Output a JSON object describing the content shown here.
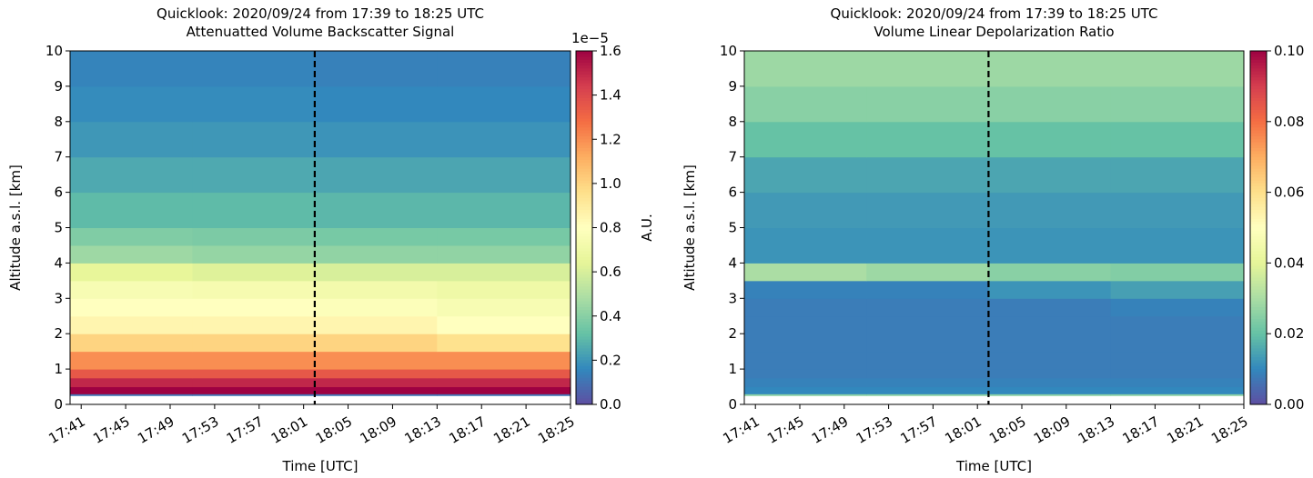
{
  "chart_data": [
    {
      "type": "heatmap",
      "title": "Quicklook: 2020/09/24 from 17:39 to 18:25 UTC",
      "subtitle": "Attenuatted Volume Backscatter Signal",
      "xlabel": "Time [UTC]",
      "ylabel": "Altitude a.s.l. [km]",
      "xlim": [
        1060,
        1105
      ],
      "xticks": [
        {
          "value": 1061,
          "label": "17:41"
        },
        {
          "value": 1065,
          "label": "17:45"
        },
        {
          "value": 1069,
          "label": "17:49"
        },
        {
          "value": 1073,
          "label": "17:53"
        },
        {
          "value": 1077,
          "label": "17:57"
        },
        {
          "value": 1081,
          "label": "18:01"
        },
        {
          "value": 1085,
          "label": "18:05"
        },
        {
          "value": 1089,
          "label": "18:09"
        },
        {
          "value": 1093,
          "label": "18:13"
        },
        {
          "value": 1097,
          "label": "18:17"
        },
        {
          "value": 1101,
          "label": "18:21"
        },
        {
          "value": 1105,
          "label": "18:25"
        }
      ],
      "ylim": [
        0,
        10
      ],
      "yticks": [
        0,
        1,
        2,
        3,
        4,
        5,
        6,
        7,
        8,
        9,
        10
      ],
      "x_edges": [
        1060,
        1071,
        1082,
        1093,
        1105
      ],
      "y_edges": [
        0,
        0.25,
        0.3,
        0.5,
        0.75,
        1,
        1.5,
        2,
        2.5,
        3,
        3.5,
        4,
        4.5,
        5,
        6,
        7,
        8,
        9,
        10
      ],
      "z": [
        [
          null,
          null,
          null,
          null
        ],
        [
          0.1,
          0.1,
          0.1,
          0.1
        ],
        [
          1.6,
          1.6,
          1.6,
          1.6
        ],
        [
          1.5,
          1.5,
          1.5,
          1.5
        ],
        [
          1.35,
          1.35,
          1.35,
          1.35
        ],
        [
          1.2,
          1.2,
          1.2,
          1.2
        ],
        [
          1.0,
          1.0,
          1.0,
          0.95
        ],
        [
          0.85,
          0.85,
          0.85,
          0.8
        ],
        [
          0.8,
          0.8,
          0.78,
          0.75
        ],
        [
          0.75,
          0.74,
          0.72,
          0.7
        ],
        [
          0.65,
          0.62,
          0.6,
          0.6
        ],
        [
          0.45,
          0.43,
          0.42,
          0.42
        ],
        [
          0.38,
          0.37,
          0.36,
          0.36
        ],
        [
          0.3,
          0.3,
          0.29,
          0.29
        ],
        [
          0.25,
          0.25,
          0.24,
          0.24
        ],
        [
          0.2,
          0.2,
          0.19,
          0.19
        ],
        [
          0.17,
          0.17,
          0.16,
          0.16
        ],
        [
          0.15,
          0.15,
          0.14,
          0.14
        ]
      ],
      "colormap": "Spectral_r",
      "clim": [
        0,
        1.6
      ],
      "cticks": [
        {
          "value": 0,
          "label": "0.0"
        },
        0.2,
        0.4,
        0.6,
        0.8,
        {
          "value": 1,
          "label": "1.0"
        },
        1.2,
        1.4,
        1.6
      ],
      "coffset": "1e−5",
      "clabel": "A.U.",
      "vline": 1082
    },
    {
      "type": "heatmap",
      "title": "Quicklook: 2020/09/24 from 17:39 to 18:25 UTC",
      "subtitle": "Volume Linear Depolarization Ratio",
      "xlabel": "Time [UTC]",
      "ylabel": "Altitude a.s.l. [km]",
      "xlim": [
        1060,
        1105
      ],
      "xticks": [
        {
          "value": 1061,
          "label": "17:41"
        },
        {
          "value": 1065,
          "label": "17:45"
        },
        {
          "value": 1069,
          "label": "17:49"
        },
        {
          "value": 1073,
          "label": "17:53"
        },
        {
          "value": 1077,
          "label": "17:57"
        },
        {
          "value": 1081,
          "label": "18:01"
        },
        {
          "value": 1085,
          "label": "18:05"
        },
        {
          "value": 1089,
          "label": "18:09"
        },
        {
          "value": 1093,
          "label": "18:13"
        },
        {
          "value": 1097,
          "label": "18:17"
        },
        {
          "value": 1101,
          "label": "18:21"
        },
        {
          "value": 1105,
          "label": "18:25"
        }
      ],
      "ylim": [
        0,
        10
      ],
      "yticks": [
        0,
        1,
        2,
        3,
        4,
        5,
        6,
        7,
        8,
        9,
        10
      ],
      "x_edges": [
        1060,
        1071,
        1082,
        1093,
        1105
      ],
      "y_edges": [
        0,
        0.25,
        0.3,
        0.5,
        0.75,
        1,
        1.5,
        2,
        2.5,
        3,
        3.5,
        4,
        4.5,
        5,
        6,
        7,
        8,
        9,
        10
      ],
      "z": [
        [
          null,
          null,
          null,
          null
        ],
        [
          0.025,
          0.025,
          0.025,
          0.025
        ],
        [
          0.01,
          0.01,
          0.01,
          0.01
        ],
        [
          0.009,
          0.009,
          0.009,
          0.009
        ],
        [
          0.008,
          0.008,
          0.008,
          0.008
        ],
        [
          0.008,
          0.008,
          0.008,
          0.008
        ],
        [
          0.008,
          0.008,
          0.008,
          0.008
        ],
        [
          0.008,
          0.008,
          0.008,
          0.008
        ],
        [
          0.008,
          0.008,
          0.008,
          0.009
        ],
        [
          0.009,
          0.009,
          0.012,
          0.014
        ],
        [
          0.03,
          0.028,
          0.025,
          0.024
        ],
        [
          0.012,
          0.012,
          0.012,
          0.012
        ],
        [
          0.012,
          0.012,
          0.012,
          0.012
        ],
        [
          0.013,
          0.013,
          0.013,
          0.013
        ],
        [
          0.015,
          0.015,
          0.015,
          0.015
        ],
        [
          0.02,
          0.02,
          0.02,
          0.02
        ],
        [
          0.025,
          0.025,
          0.025,
          0.025
        ],
        [
          0.028,
          0.028,
          0.028,
          0.028
        ]
      ],
      "colormap": "Spectral_r",
      "clim": [
        0,
        0.1
      ],
      "cticks": [
        {
          "value": 0,
          "label": "0.00"
        },
        {
          "value": 0.02,
          "label": "0.02"
        },
        {
          "value": 0.04,
          "label": "0.04"
        },
        {
          "value": 0.06,
          "label": "0.06"
        },
        {
          "value": 0.08,
          "label": "0.08"
        },
        {
          "value": 0.1,
          "label": "0.10"
        }
      ],
      "vline": 1082
    }
  ]
}
